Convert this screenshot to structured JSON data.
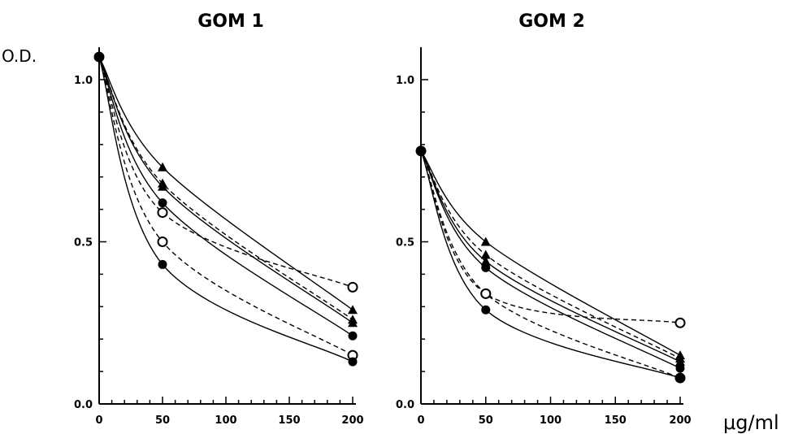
{
  "figure": {
    "y_axis_label": "O.D.",
    "x_unit_label": "μg/ml"
  },
  "chart_data": [
    {
      "type": "line",
      "title": "GOM 1",
      "xlabel": "μg/ml",
      "ylabel": "O.D.",
      "xlim": [
        0,
        200
      ],
      "ylim": [
        0,
        1.1
      ],
      "x_ticks": [
        "0",
        "50",
        "100",
        "150",
        "200"
      ],
      "y_ticks": [
        "0.0",
        "0.5",
        "1.0"
      ],
      "grid": false,
      "x": [
        0,
        50,
        200
      ],
      "series": [
        {
          "marker": "triangle",
          "line": "solid",
          "values": [
            1.07,
            0.73,
            0.29
          ]
        },
        {
          "marker": "triangle",
          "line": "dashed",
          "values": [
            1.07,
            0.68,
            0.26
          ]
        },
        {
          "marker": "triangle",
          "line": "solid",
          "values": [
            1.07,
            0.67,
            0.25
          ]
        },
        {
          "marker": "circle-filled",
          "line": "solid",
          "values": [
            1.07,
            0.62,
            0.21
          ]
        },
        {
          "marker": "circle-open",
          "line": "dashed",
          "values": [
            1.07,
            0.59,
            0.36
          ]
        },
        {
          "marker": "circle-open",
          "line": "dashed",
          "values": [
            1.07,
            0.5,
            0.15
          ]
        },
        {
          "marker": "circle-filled",
          "line": "solid",
          "values": [
            1.07,
            0.43,
            0.13
          ]
        }
      ]
    },
    {
      "type": "line",
      "title": "GOM 2",
      "xlabel": "μg/ml",
      "ylabel": "O.D.",
      "xlim": [
        0,
        200
      ],
      "ylim": [
        0,
        1.1
      ],
      "x_ticks": [
        "0",
        "50",
        "100",
        "150",
        "200"
      ],
      "y_ticks": [
        "0.0",
        "0.5",
        "1.0"
      ],
      "grid": false,
      "x": [
        0,
        50,
        200
      ],
      "series": [
        {
          "marker": "triangle",
          "line": "solid",
          "values": [
            0.78,
            0.5,
            0.15
          ]
        },
        {
          "marker": "triangle",
          "line": "dashed",
          "values": [
            0.78,
            0.46,
            0.14
          ]
        },
        {
          "marker": "triangle",
          "line": "solid",
          "values": [
            0.78,
            0.44,
            0.13
          ]
        },
        {
          "marker": "circle-filled",
          "line": "solid",
          "values": [
            0.78,
            0.42,
            0.11
          ]
        },
        {
          "marker": "circle-open",
          "line": "dashed",
          "values": [
            0.78,
            0.34,
            0.25
          ]
        },
        {
          "marker": "circle-open",
          "line": "dashed",
          "values": [
            0.78,
            0.34,
            0.08
          ]
        },
        {
          "marker": "circle-filled",
          "line": "solid",
          "values": [
            0.78,
            0.29,
            0.08
          ]
        }
      ]
    }
  ]
}
